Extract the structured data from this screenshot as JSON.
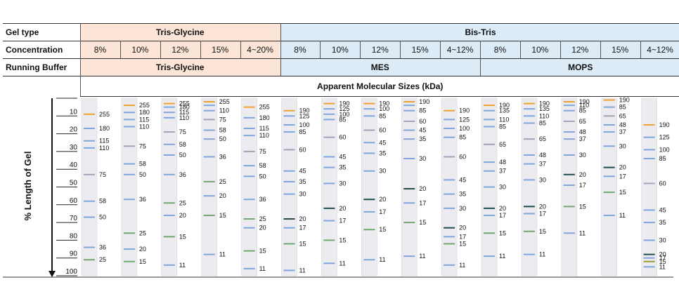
{
  "table": {
    "labels": {
      "gel_type": "Gel type",
      "concentration": "Concentration",
      "running_buffer": "Running Buffer",
      "apparent": "Apparent Molecular Sizes (kDa)"
    },
    "gel_types": [
      {
        "name": "Tris-Glycine",
        "color": "#fce4d6"
      },
      {
        "name": "Bis-Tris",
        "color": "#ddebf7"
      }
    ],
    "concentrations": [
      "8%",
      "10%",
      "12%",
      "15%",
      "4~20%",
      "8%",
      "10%",
      "12%",
      "15%",
      "4~12%",
      "8%",
      "10%",
      "12%",
      "15%",
      "4~12%"
    ],
    "buffers": [
      {
        "name": "Tris-Glycine",
        "color": "#fce4d6"
      },
      {
        "name": "MES",
        "color": "#ddebf7"
      },
      {
        "name": "MOPS",
        "color": "#ddebf7"
      }
    ]
  },
  "axis": {
    "label": "% Length of Gel",
    "ticks": [
      "10",
      "20",
      "30",
      "40",
      "50",
      "60",
      "70",
      "80",
      "90",
      "100"
    ]
  },
  "band_colors": {
    "blue": "#7ea6dc",
    "orange": "#f0a030",
    "gray": "#a8a0b8",
    "green": "#70a870",
    "dark": "#1d4d4d",
    "olive": "#9a9a30"
  },
  "lanes": [
    {
      "bands": [
        {
          "mw": "255",
          "pos": 9,
          "c": "orange"
        },
        {
          "mw": "180",
          "pos": 17,
          "c": "blue"
        },
        {
          "mw": "115",
          "pos": 24,
          "c": "blue"
        },
        {
          "mw": "110",
          "pos": 28,
          "c": "blue"
        },
        {
          "mw": "75",
          "pos": 43,
          "c": "gray"
        },
        {
          "mw": "58",
          "pos": 58,
          "c": "blue"
        },
        {
          "mw": "50",
          "pos": 67,
          "c": "blue"
        },
        {
          "mw": "36",
          "pos": 84,
          "c": "blue"
        },
        {
          "mw": "25",
          "pos": 91,
          "c": "green"
        }
      ]
    },
    {
      "bands": [
        {
          "mw": "255",
          "pos": 4,
          "c": "orange"
        },
        {
          "mw": "180",
          "pos": 8,
          "c": "blue"
        },
        {
          "mw": "115",
          "pos": 12,
          "c": "blue"
        },
        {
          "mw": "110",
          "pos": 16,
          "c": "blue"
        },
        {
          "mw": "75",
          "pos": 27,
          "c": "gray"
        },
        {
          "mw": "58",
          "pos": 37,
          "c": "blue"
        },
        {
          "mw": "50",
          "pos": 43,
          "c": "blue"
        },
        {
          "mw": "36",
          "pos": 57,
          "c": "blue"
        },
        {
          "mw": "25",
          "pos": 76,
          "c": "green"
        },
        {
          "mw": "20",
          "pos": 85,
          "c": "blue"
        },
        {
          "mw": "15",
          "pos": 92,
          "c": "green"
        }
      ]
    },
    {
      "bands": [
        {
          "mw": "255",
          "pos": 3,
          "c": "orange"
        },
        {
          "mw": "180",
          "pos": 5,
          "c": "blue"
        },
        {
          "mw": "115",
          "pos": 8,
          "c": "blue"
        },
        {
          "mw": "110",
          "pos": 11,
          "c": "blue"
        },
        {
          "mw": "75",
          "pos": 19,
          "c": "gray"
        },
        {
          "mw": "58",
          "pos": 26,
          "c": "blue"
        },
        {
          "mw": "50",
          "pos": 32,
          "c": "blue"
        },
        {
          "mw": "36",
          "pos": 43,
          "c": "blue"
        },
        {
          "mw": "25",
          "pos": 59,
          "c": "green"
        },
        {
          "mw": "20",
          "pos": 66,
          "c": "blue"
        },
        {
          "mw": "15",
          "pos": 78,
          "c": "green"
        },
        {
          "mw": "11",
          "pos": 94,
          "c": "blue"
        }
      ]
    },
    {
      "bands": [
        {
          "mw": "255",
          "pos": 2,
          "c": "orange"
        },
        {
          "mw": "",
          "pos": 4,
          "c": "blue"
        },
        {
          "mw": "110",
          "pos": 7,
          "c": "blue"
        },
        {
          "mw": "75",
          "pos": 12,
          "c": "gray"
        },
        {
          "mw": "58",
          "pos": 18,
          "c": "blue"
        },
        {
          "mw": "50",
          "pos": 23,
          "c": "blue"
        },
        {
          "mw": "36",
          "pos": 33,
          "c": "blue"
        },
        {
          "mw": "25",
          "pos": 47,
          "c": "green"
        },
        {
          "mw": "20",
          "pos": 55,
          "c": "blue"
        },
        {
          "mw": "15",
          "pos": 66,
          "c": "green"
        },
        {
          "mw": "11",
          "pos": 88,
          "c": "blue"
        }
      ]
    },
    {
      "bands": [
        {
          "mw": "255",
          "pos": 5,
          "c": "orange"
        },
        {
          "mw": "180",
          "pos": 11,
          "c": "blue"
        },
        {
          "mw": "115",
          "pos": 17,
          "c": "blue"
        },
        {
          "mw": "110",
          "pos": 21,
          "c": "blue"
        },
        {
          "mw": "75",
          "pos": 30,
          "c": "gray"
        },
        {
          "mw": "58",
          "pos": 38,
          "c": "blue"
        },
        {
          "mw": "50",
          "pos": 44,
          "c": "blue"
        },
        {
          "mw": "36",
          "pos": 57,
          "c": "blue"
        },
        {
          "mw": "25",
          "pos": 68,
          "c": "green"
        },
        {
          "mw": "20",
          "pos": 73,
          "c": "blue"
        },
        {
          "mw": "15",
          "pos": 86,
          "c": "green"
        },
        {
          "mw": "11",
          "pos": 96,
          "c": "blue"
        }
      ]
    },
    {
      "bands": [
        {
          "mw": "190",
          "pos": 7,
          "c": "orange"
        },
        {
          "mw": "125",
          "pos": 10,
          "c": "blue"
        },
        {
          "mw": "100",
          "pos": 15,
          "c": "blue"
        },
        {
          "mw": "85",
          "pos": 19,
          "c": "blue"
        },
        {
          "mw": "60",
          "pos": 29,
          "c": "gray"
        },
        {
          "mw": "45",
          "pos": 41,
          "c": "blue"
        },
        {
          "mw": "35",
          "pos": 47,
          "c": "blue"
        },
        {
          "mw": "30",
          "pos": 54,
          "c": "blue"
        },
        {
          "mw": "20",
          "pos": 68,
          "c": "dark"
        },
        {
          "mw": "17",
          "pos": 73,
          "c": "blue"
        },
        {
          "mw": "15",
          "pos": 82,
          "c": "green"
        },
        {
          "mw": "11",
          "pos": 97,
          "c": "blue"
        }
      ]
    },
    {
      "bands": [
        {
          "mw": "190",
          "pos": 3,
          "c": "orange"
        },
        {
          "mw": "125",
          "pos": 6,
          "c": "blue"
        },
        {
          "mw": "100",
          "pos": 9,
          "c": "blue"
        },
        {
          "mw": "85",
          "pos": 12,
          "c": "blue"
        },
        {
          "mw": "60",
          "pos": 22,
          "c": "gray"
        },
        {
          "mw": "45",
          "pos": 33,
          "c": "blue"
        },
        {
          "mw": "35",
          "pos": 39,
          "c": "blue"
        },
        {
          "mw": "30",
          "pos": 48,
          "c": "blue"
        },
        {
          "mw": "20",
          "pos": 62,
          "c": "dark"
        },
        {
          "mw": "17",
          "pos": 69,
          "c": "blue"
        },
        {
          "mw": "15",
          "pos": 80,
          "c": "green"
        },
        {
          "mw": "11",
          "pos": 93,
          "c": "blue"
        }
      ]
    },
    {
      "bands": [
        {
          "mw": "190",
          "pos": 3,
          "c": "orange"
        },
        {
          "mw": "100",
          "pos": 6,
          "c": "blue"
        },
        {
          "mw": "85",
          "pos": 10,
          "c": "blue"
        },
        {
          "mw": "60",
          "pos": 18,
          "c": "gray"
        },
        {
          "mw": "45",
          "pos": 25,
          "c": "blue"
        },
        {
          "mw": "35",
          "pos": 31,
          "c": "blue"
        },
        {
          "mw": "30",
          "pos": 41,
          "c": "blue"
        },
        {
          "mw": "20",
          "pos": 57,
          "c": "dark"
        },
        {
          "mw": "17",
          "pos": 64,
          "c": "blue"
        },
        {
          "mw": "15",
          "pos": 74,
          "c": "green"
        },
        {
          "mw": "11",
          "pos": 91,
          "c": "blue"
        }
      ]
    },
    {
      "bands": [
        {
          "mw": "190",
          "pos": 2,
          "c": "orange"
        },
        {
          "mw": "",
          "pos": 4,
          "c": "blue"
        },
        {
          "mw": "85",
          "pos": 7,
          "c": "blue"
        },
        {
          "mw": "60",
          "pos": 13,
          "c": "gray"
        },
        {
          "mw": "45",
          "pos": 18,
          "c": "blue"
        },
        {
          "mw": "35",
          "pos": 23,
          "c": "blue"
        },
        {
          "mw": "30",
          "pos": 34,
          "c": "blue"
        },
        {
          "mw": "20",
          "pos": 51,
          "c": "dark"
        },
        {
          "mw": "17",
          "pos": 59,
          "c": "blue"
        },
        {
          "mw": "15",
          "pos": 70,
          "c": "green"
        },
        {
          "mw": "11",
          "pos": 89,
          "c": "blue"
        }
      ]
    },
    {
      "bands": [
        {
          "mw": "190",
          "pos": 7,
          "c": "orange"
        },
        {
          "mw": "125",
          "pos": 12,
          "c": "blue"
        },
        {
          "mw": "100",
          "pos": 17,
          "c": "blue"
        },
        {
          "mw": "85",
          "pos": 22,
          "c": "blue"
        },
        {
          "mw": "60",
          "pos": 33,
          "c": "gray"
        },
        {
          "mw": "45",
          "pos": 46,
          "c": "blue"
        },
        {
          "mw": "35",
          "pos": 54,
          "c": "blue"
        },
        {
          "mw": "30",
          "pos": 62,
          "c": "blue"
        },
        {
          "mw": "20",
          "pos": 73,
          "c": "dark"
        },
        {
          "mw": "17",
          "pos": 78,
          "c": "blue"
        },
        {
          "mw": "15",
          "pos": 82,
          "c": "green"
        },
        {
          "mw": "11",
          "pos": 94,
          "c": "blue"
        }
      ]
    },
    {
      "bands": [
        {
          "mw": "190",
          "pos": 4,
          "c": "orange"
        },
        {
          "mw": "135",
          "pos": 7,
          "c": "blue"
        },
        {
          "mw": "110",
          "pos": 12,
          "c": "blue"
        },
        {
          "mw": "85",
          "pos": 16,
          "c": "blue"
        },
        {
          "mw": "65",
          "pos": 26,
          "c": "gray"
        },
        {
          "mw": "48",
          "pos": 36,
          "c": "blue"
        },
        {
          "mw": "37",
          "pos": 41,
          "c": "blue"
        },
        {
          "mw": "30",
          "pos": 50,
          "c": "blue"
        },
        {
          "mw": "20",
          "pos": 62,
          "c": "dark"
        },
        {
          "mw": "17",
          "pos": 66,
          "c": "blue"
        },
        {
          "mw": "15",
          "pos": 76,
          "c": "green"
        },
        {
          "mw": "11",
          "pos": 89,
          "c": "blue"
        }
      ]
    },
    {
      "bands": [
        {
          "mw": "190",
          "pos": 3,
          "c": "orange"
        },
        {
          "mw": "135",
          "pos": 6,
          "c": "blue"
        },
        {
          "mw": "110",
          "pos": 10,
          "c": "blue"
        },
        {
          "mw": "85",
          "pos": 14,
          "c": "blue"
        },
        {
          "mw": "65",
          "pos": 23,
          "c": "gray"
        },
        {
          "mw": "48",
          "pos": 32,
          "c": "blue"
        },
        {
          "mw": "37",
          "pos": 37,
          "c": "blue"
        },
        {
          "mw": "30",
          "pos": 46,
          "c": "blue"
        },
        {
          "mw": "20",
          "pos": 61,
          "c": "dark"
        },
        {
          "mw": "17",
          "pos": 65,
          "c": "blue"
        },
        {
          "mw": "15",
          "pos": 75,
          "c": "green"
        },
        {
          "mw": "11",
          "pos": 88,
          "c": "blue"
        }
      ]
    },
    {
      "bands": [
        {
          "mw": "190",
          "pos": 2,
          "c": "orange"
        },
        {
          "mw": "110",
          "pos": 4,
          "c": "blue"
        },
        {
          "mw": "85",
          "pos": 7,
          "c": "blue"
        },
        {
          "mw": "65",
          "pos": 13,
          "c": "gray"
        },
        {
          "mw": "48",
          "pos": 19,
          "c": "blue"
        },
        {
          "mw": "37",
          "pos": 23,
          "c": "blue"
        },
        {
          "mw": "30",
          "pos": 32,
          "c": "blue"
        },
        {
          "mw": "20",
          "pos": 43,
          "c": "dark"
        },
        {
          "mw": "17",
          "pos": 49,
          "c": "blue"
        },
        {
          "mw": "15",
          "pos": 61,
          "c": "green"
        },
        {
          "mw": "11",
          "pos": 76,
          "c": "blue"
        }
      ]
    },
    {
      "bands": [
        {
          "mw": "190",
          "pos": 1,
          "c": "orange"
        },
        {
          "mw": "85",
          "pos": 5,
          "c": "blue"
        },
        {
          "mw": "65",
          "pos": 10,
          "c": "gray"
        },
        {
          "mw": "48",
          "pos": 15,
          "c": "blue"
        },
        {
          "mw": "37",
          "pos": 19,
          "c": "blue"
        },
        {
          "mw": "30",
          "pos": 27,
          "c": "blue"
        },
        {
          "mw": "20",
          "pos": 39,
          "c": "dark"
        },
        {
          "mw": "17",
          "pos": 44,
          "c": "blue"
        },
        {
          "mw": "15",
          "pos": 53,
          "c": "green"
        },
        {
          "mw": "11",
          "pos": 66,
          "c": "blue"
        }
      ]
    },
    {
      "bands": [
        {
          "mw": "190",
          "pos": 15,
          "c": "orange"
        },
        {
          "mw": "125",
          "pos": 22,
          "c": "blue"
        },
        {
          "mw": "100",
          "pos": 29,
          "c": "blue"
        },
        {
          "mw": "85",
          "pos": 34,
          "c": "blue"
        },
        {
          "mw": "60",
          "pos": 48,
          "c": "gray"
        },
        {
          "mw": "45",
          "pos": 63,
          "c": "blue"
        },
        {
          "mw": "35",
          "pos": 70,
          "c": "blue"
        },
        {
          "mw": "30",
          "pos": 80,
          "c": "blue"
        },
        {
          "mw": "20",
          "pos": 88,
          "c": "dark"
        },
        {
          "mw": "17",
          "pos": 90,
          "c": "blue"
        },
        {
          "mw": "15",
          "pos": 92,
          "c": "olive"
        },
        {
          "mw": "11",
          "pos": 95,
          "c": "blue"
        }
      ]
    }
  ]
}
